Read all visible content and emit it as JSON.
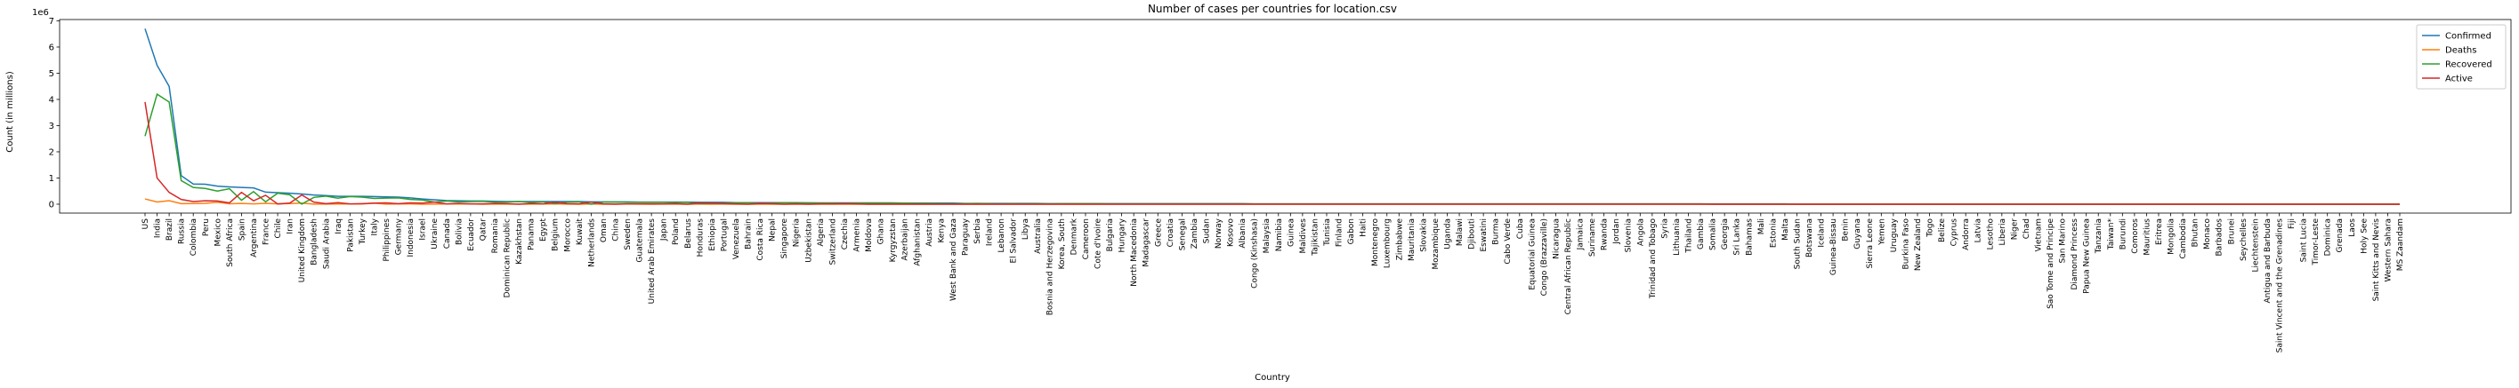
{
  "chart_data": {
    "type": "line",
    "title": "Number of cases per countries for location.csv",
    "x_label": "Country",
    "y_label": "Count (in millions)",
    "y_offset_label": "1e6",
    "legend": "upper right",
    "grid": false,
    "ylim": [
      -0.34,
      7.05
    ],
    "yticks": [
      0,
      1,
      2,
      3,
      4,
      5,
      6,
      7
    ],
    "categories": [
      "US",
      "India",
      "Brazil",
      "Russia",
      "Colombia",
      "Peru",
      "Mexico",
      "South Africa",
      "Spain",
      "Argentina",
      "France",
      "Chile",
      "Iran",
      "United Kingdom",
      "Bangladesh",
      "Saudi Arabia",
      "Iraq",
      "Pakistan",
      "Turkey",
      "Italy",
      "Philippines",
      "Germany",
      "Indonesia",
      "Israel",
      "Ukraine",
      "Canada",
      "Bolivia",
      "Ecuador",
      "Qatar",
      "Romania",
      "Dominican Republic",
      "Kazakhstan",
      "Panama",
      "Egypt",
      "Belgium",
      "Morocco",
      "Kuwait",
      "Netherlands",
      "Oman",
      "China",
      "Sweden",
      "Guatemala",
      "United Arab Emirates",
      "Japan",
      "Poland",
      "Belarus",
      "Honduras",
      "Ethiopia",
      "Portugal",
      "Venezuela",
      "Bahrain",
      "Costa Rica",
      "Nepal",
      "Singapore",
      "Nigeria",
      "Uzbekistan",
      "Algeria",
      "Switzerland",
      "Czechia",
      "Armenia",
      "Moldova",
      "Ghana",
      "Kyrgyzstan",
      "Azerbaijan",
      "Afghanistan",
      "Austria",
      "Kenya",
      "West Bank and Gaza",
      "Paraguay",
      "Serbia",
      "Ireland",
      "Lebanon",
      "El Salvador",
      "Libya",
      "Australia",
      "Bosnia and Herzegovina",
      "Korea, South",
      "Denmark",
      "Cameroon",
      "Cote d'Ivoire",
      "Bulgaria",
      "Hungary",
      "North Macedonia",
      "Madagascar",
      "Greece",
      "Croatia",
      "Senegal",
      "Zambia",
      "Sudan",
      "Norway",
      "Kosovo",
      "Albania",
      "Congo (Kinshasa)",
      "Malaysia",
      "Namibia",
      "Guinea",
      "Maldives",
      "Tajikistan",
      "Tunisia",
      "Finland",
      "Gabon",
      "Haiti",
      "Montenegro",
      "Luxembourg",
      "Zimbabwe",
      "Mauritania",
      "Slovakia",
      "Mozambique",
      "Uganda",
      "Malawi",
      "Djibouti",
      "Eswatini",
      "Burma",
      "Cabo Verde",
      "Cuba",
      "Equatorial Guinea",
      "Congo (Brazzaville)",
      "Nicaragua",
      "Central African Republic",
      "Jamaica",
      "Suriname",
      "Rwanda",
      "Jordan",
      "Slovenia",
      "Angola",
      "Trinidad and Tobago",
      "Syria",
      "Lithuania",
      "Thailand",
      "Gambia",
      "Somalia",
      "Georgia",
      "Sri Lanka",
      "Bahamas",
      "Mali",
      "Estonia",
      "Malta",
      "South Sudan",
      "Botswana",
      "Iceland",
      "Guinea-Bissau",
      "Benin",
      "Guyana",
      "Sierra Leone",
      "Yemen",
      "Uruguay",
      "Burkina Faso",
      "New Zealand",
      "Togo",
      "Belize",
      "Cyprus",
      "Andorra",
      "Latvia",
      "Lesotho",
      "Liberia",
      "Niger",
      "Chad",
      "Vietnam",
      "Sao Tome and Principe",
      "San Marino",
      "Diamond Princess",
      "Papua New Guinea",
      "Tanzania",
      "Taiwan*",
      "Burundi",
      "Comoros",
      "Mauritius",
      "Eritrea",
      "Mongolia",
      "Cambodia",
      "Bhutan",
      "Monaco",
      "Barbados",
      "Brunei",
      "Seychelles",
      "Liechtenstein",
      "Antigua and Barbuda",
      "Saint Vincent and the Grenadines",
      "Fiji",
      "Saint Lucia",
      "Timor-Leste",
      "Dominica",
      "Grenada",
      "Laos",
      "Holy See",
      "Saint Kitts and Nevis",
      "Western Sahara",
      "MS Zaandam"
    ],
    "series": [
      {
        "name": "Confirmed",
        "color": "#1f77b4",
        "values": [
          6.7,
          5.3,
          4.5,
          1.09,
          0.77,
          0.76,
          0.69,
          0.66,
          0.64,
          0.62,
          0.46,
          0.44,
          0.42,
          0.39,
          0.35,
          0.33,
          0.3,
          0.3,
          0.3,
          0.29,
          0.28,
          0.27,
          0.24,
          0.2,
          0.17,
          0.14,
          0.13,
          0.12,
          0.12,
          0.11,
          0.1,
          0.1,
          0.1,
          0.1,
          0.1,
          0.1,
          0.1,
          0.09,
          0.09,
          0.09,
          0.09,
          0.08,
          0.08,
          0.08,
          0.08,
          0.08,
          0.07,
          0.07,
          0.07,
          0.06,
          0.06,
          0.06,
          0.06,
          0.06,
          0.06,
          0.05,
          0.05,
          0.05,
          0.05,
          0.05,
          0.05,
          0.05,
          0.05,
          0.04,
          0.04,
          0.04,
          0.04,
          0.04,
          0.03,
          0.03,
          0.03,
          0.03,
          0.03,
          0.03,
          0.03,
          0.02,
          0.02,
          0.02,
          0.02,
          0.02,
          0.02,
          0.02,
          0.02,
          0.02,
          0.02,
          0.02,
          0.02,
          0.02,
          0.02,
          0.02,
          0.02,
          0.02,
          0.01,
          0.01,
          0.01,
          0.01,
          0.01,
          0.01,
          0.01,
          0.01,
          0.01,
          0.01,
          0.01,
          0.01,
          0.01,
          0.01,
          0.01,
          0.01,
          0.01,
          0.01,
          0.01,
          0.01,
          0.01,
          0.01,
          0.01,
          0.01,
          0.01,
          0.01,
          0.01,
          0.01,
          0.01,
          0.01,
          0.01,
          0.01,
          0.01,
          0.01,
          0.01,
          0.01,
          0.01,
          0.01,
          0.01,
          0.01,
          0.01,
          0.01,
          0.01,
          0.01,
          0.01,
          0,
          0,
          0,
          0,
          0,
          0,
          0,
          0,
          0,
          0,
          0,
          0,
          0,
          0,
          0,
          0,
          0,
          0,
          0,
          0,
          0,
          0,
          0,
          0,
          0,
          0,
          0,
          0,
          0,
          0,
          0,
          0,
          0,
          0,
          0,
          0,
          0,
          0,
          0,
          0,
          0,
          0,
          0,
          0,
          0,
          0,
          0,
          0,
          0,
          0,
          0
        ]
      },
      {
        "name": "Deaths",
        "color": "#ff7f0e",
        "values": [
          0.2,
          0.085,
          0.135,
          0.019,
          0.024,
          0.031,
          0.074,
          0.016,
          0.03,
          0.013,
          0.031,
          0.012,
          0.024,
          0.042,
          0.005,
          0.004,
          0.008,
          0.006,
          0.007,
          0.036,
          0.005,
          0.009,
          0.01,
          0.001,
          0.004,
          0.009,
          0.008,
          0.011,
          0,
          0.004,
          0.002,
          0.002,
          0.002,
          0.006,
          0.01,
          0.002,
          0.001,
          0.006,
          0.001,
          0.005,
          0.006,
          0.003,
          0,
          0.002,
          0.002,
          0.001,
          0.002,
          0.001,
          0.002,
          0.001,
          0,
          0,
          0,
          0,
          0,
          0,
          0,
          0,
          0,
          0,
          0,
          0,
          0,
          0,
          0,
          0,
          0,
          0,
          0,
          0,
          0,
          0,
          0,
          0,
          0,
          0,
          0,
          0,
          0,
          0,
          0,
          0,
          0,
          0,
          0,
          0,
          0,
          0,
          0,
          0,
          0,
          0,
          0,
          0,
          0,
          0,
          0,
          0,
          0,
          0,
          0,
          0,
          0,
          0,
          0,
          0,
          0,
          0,
          0,
          0,
          0,
          0,
          0,
          0,
          0,
          0,
          0,
          0,
          0,
          0,
          0,
          0,
          0,
          0,
          0,
          0,
          0,
          0,
          0,
          0,
          0,
          0,
          0,
          0,
          0,
          0,
          0,
          0,
          0,
          0,
          0,
          0,
          0,
          0,
          0,
          0,
          0,
          0,
          0,
          0,
          0,
          0,
          0,
          0,
          0,
          0,
          0,
          0,
          0,
          0,
          0,
          0,
          0,
          0,
          0,
          0,
          0,
          0,
          0,
          0,
          0,
          0,
          0,
          0,
          0,
          0,
          0,
          0,
          0,
          0,
          0,
          0,
          0,
          0,
          0,
          0,
          0,
          0
        ]
      },
      {
        "name": "Recovered",
        "color": "#2ca02c",
        "values": [
          2.6,
          4.2,
          3.9,
          0.9,
          0.64,
          0.6,
          0.5,
          0.59,
          0.15,
          0.48,
          0.09,
          0.42,
          0.36,
          0.002,
          0.26,
          0.31,
          0.23,
          0.29,
          0.27,
          0.22,
          0.23,
          0.24,
          0.18,
          0.16,
          0.08,
          0.12,
          0.09,
          0.1,
          0.11,
          0.08,
          0.08,
          0.1,
          0.07,
          0.09,
          0.02,
          0.08,
          0.09,
          0,
          0.08,
          0.08,
          0.07,
          0.07,
          0.07,
          0.07,
          0.06,
          0.07,
          0.02,
          0.03,
          0.04,
          0.05,
          0.06,
          0.03,
          0.04,
          0.06,
          0.05,
          0.05,
          0.04,
          0.04,
          0.03,
          0.04,
          0.04,
          0.04,
          0.04,
          0.04,
          0.03,
          0.03,
          0.02,
          0.02,
          0.02,
          0.03,
          0.02,
          0.01,
          0.02,
          0.01,
          0.02,
          0.01,
          0.02,
          0.02,
          0.02,
          0.02,
          0.01,
          0.01,
          0.01,
          0.01,
          0.01,
          0.01,
          0.01,
          0.01,
          0.01,
          0.01,
          0.01,
          0.01,
          0.01,
          0.01,
          0.01,
          0.01,
          0.01,
          0.01,
          0.01,
          0.01,
          0.01,
          0.01,
          0.01,
          0.01,
          0.01,
          0.01,
          0.01,
          0.01,
          0.01,
          0.01,
          0.01,
          0.01,
          0.01,
          0.01,
          0.01,
          0.01,
          0.01,
          0.01,
          0.01,
          0.01,
          0.01,
          0.01,
          0.01,
          0.01,
          0.01,
          0.01,
          0.01,
          0.01,
          0.01,
          0.01,
          0,
          0,
          0,
          0,
          0,
          0,
          0,
          0,
          0,
          0,
          0,
          0,
          0,
          0,
          0,
          0,
          0,
          0,
          0,
          0,
          0,
          0,
          0,
          0,
          0,
          0,
          0,
          0,
          0,
          0,
          0,
          0,
          0,
          0,
          0,
          0,
          0,
          0,
          0,
          0,
          0,
          0,
          0,
          0,
          0,
          0,
          0,
          0,
          0,
          0,
          0,
          0,
          0,
          0,
          0,
          0,
          0,
          0
        ]
      },
      {
        "name": "Active",
        "color": "#d62728",
        "values": [
          3.9,
          1.0,
          0.45,
          0.18,
          0.1,
          0.13,
          0.12,
          0.05,
          0.45,
          0.13,
          0.34,
          0.01,
          0.04,
          0.35,
          0.08,
          0.02,
          0.06,
          0.01,
          0.02,
          0.04,
          0.05,
          0.02,
          0.05,
          0.04,
          0.08,
          0.01,
          0.03,
          0.01,
          0.01,
          0.03,
          0.02,
          0,
          0.03,
          0.01,
          0.07,
          0.02,
          0.01,
          0.08,
          0.01,
          0,
          0.01,
          0.01,
          0.01,
          0.01,
          0.02,
          0,
          0.05,
          0.04,
          0.02,
          0.01,
          0,
          0.03,
          0.02,
          0,
          0.01,
          0,
          0.01,
          0.01,
          0.02,
          0.01,
          0,
          0,
          0,
          0,
          0,
          0,
          0,
          0,
          0,
          0,
          0,
          0,
          0,
          0,
          0,
          0,
          0,
          0,
          0,
          0,
          0,
          0,
          0,
          0,
          0,
          0,
          0,
          0,
          0,
          0,
          0,
          0,
          0,
          0,
          0,
          0,
          0,
          0,
          0,
          0,
          0,
          0,
          0,
          0,
          0,
          0,
          0,
          0,
          0,
          0,
          0,
          0,
          0,
          0,
          0,
          0,
          0,
          0,
          0,
          0,
          0,
          0,
          0,
          0,
          0,
          0,
          0,
          0,
          0,
          0,
          0,
          0,
          0,
          0,
          0,
          0,
          0,
          0,
          0,
          0,
          0,
          0,
          0,
          0,
          0,
          0,
          0,
          0,
          0,
          0,
          0,
          0,
          0,
          0,
          0,
          0,
          0,
          0,
          0,
          0,
          0,
          0,
          0,
          0,
          0,
          0,
          0,
          0,
          0,
          0,
          0,
          0,
          0,
          0,
          0,
          0,
          0,
          0,
          0,
          0,
          0,
          0,
          0,
          0,
          0,
          0,
          0,
          0
        ]
      }
    ]
  }
}
